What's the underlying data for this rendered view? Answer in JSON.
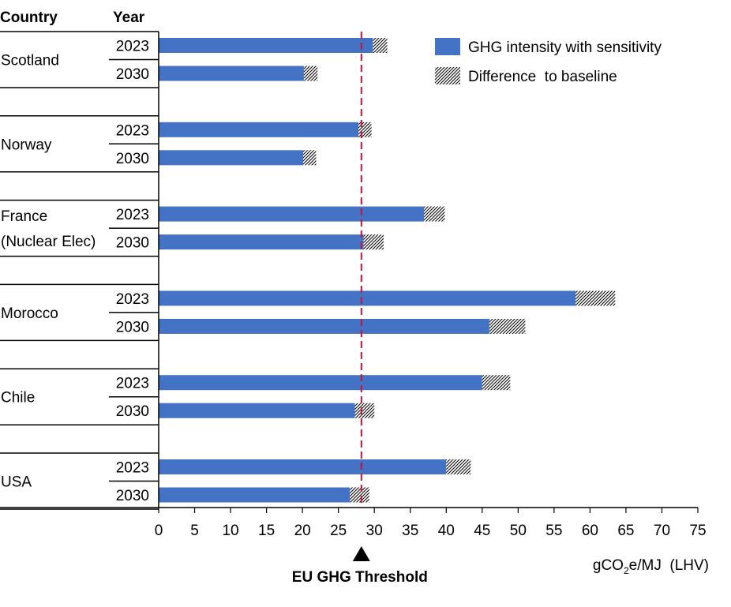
{
  "chart_data": {
    "type": "bar",
    "orientation": "horizontal",
    "stacked": true,
    "header": {
      "country": "Country",
      "year": "Year"
    },
    "groups": [
      {
        "country": [
          "Scotland"
        ],
        "rows": [
          {
            "year": "2023",
            "value": 29.8,
            "diff": 2.0
          },
          {
            "year": "2030",
            "value": 20.2,
            "diff": 1.9
          }
        ]
      },
      {
        "country": [
          "Norway"
        ],
        "rows": [
          {
            "year": "2023",
            "value": 27.8,
            "diff": 1.8
          },
          {
            "year": "2030",
            "value": 20.1,
            "diff": 1.8
          }
        ]
      },
      {
        "country": [
          "France",
          "(Nuclear Elec)"
        ],
        "rows": [
          {
            "year": "2023",
            "value": 36.9,
            "diff": 2.9
          },
          {
            "year": "2030",
            "value": 28.5,
            "diff": 2.8
          }
        ]
      },
      {
        "country": [
          "Morocco"
        ],
        "rows": [
          {
            "year": "2023",
            "value": 58.0,
            "diff": 5.5
          },
          {
            "year": "2030",
            "value": 46.0,
            "diff": 5.0
          }
        ]
      },
      {
        "country": [
          "Chile"
        ],
        "rows": [
          {
            "year": "2023",
            "value": 45.0,
            "diff": 3.9
          },
          {
            "year": "2030",
            "value": 27.3,
            "diff": 2.7
          }
        ]
      },
      {
        "country": [
          "USA"
        ],
        "rows": [
          {
            "year": "2023",
            "value": 40.0,
            "diff": 3.4
          },
          {
            "year": "2030",
            "value": 26.6,
            "diff": 2.7
          }
        ]
      }
    ],
    "series": [
      {
        "name": "GHG intensity with sensitivity",
        "color": "#4472c4"
      },
      {
        "name": "Difference  to baseline",
        "pattern": "diagonal-hatch"
      }
    ],
    "xlim": [
      0,
      75
    ],
    "xticks": [
      0,
      5,
      10,
      15,
      20,
      25,
      30,
      35,
      40,
      45,
      50,
      55,
      60,
      65,
      70,
      75
    ],
    "xlabel": {
      "main": "gCO",
      "sub": "2",
      "rest": "e/MJ  (LHV)"
    },
    "threshold": {
      "value": 28.2,
      "label": "EU GHG Threshold",
      "color": "#c0143c"
    },
    "legend_position": "top-right",
    "grid": false
  }
}
